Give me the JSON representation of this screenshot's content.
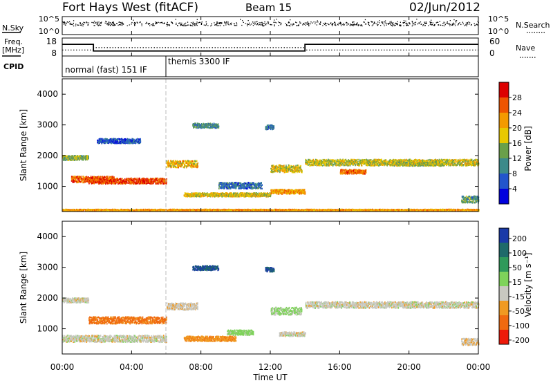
{
  "header": {
    "radar_title": "Fort Hays West (fitACF)",
    "beam": "Beam 15",
    "date": "02/Jun/2012"
  },
  "sidebar_labels": {
    "nsky": "N.Sky",
    "freq_line1": "Freq.",
    "freq_line2": "[MHz]",
    "cpid": "CPID",
    "nsearch": "N.Search",
    "nave": "Nave"
  },
  "noise_panel": {
    "y_ticks_left": [
      "10^5",
      "10^0"
    ],
    "y_ticks_right": [
      "10^5",
      "10^0"
    ]
  },
  "freq_panel": {
    "y_ticks_left": [
      "18",
      "8"
    ],
    "y_ticks_right": [
      "60",
      "0"
    ],
    "freq_steps": [
      {
        "start_hour": 0.0,
        "end_hour": 1.8,
        "mhz": 14.5
      },
      {
        "start_hour": 1.8,
        "end_hour": 14.0,
        "mhz": 10.8
      },
      {
        "start_hour": 14.0,
        "end_hour": 24.0,
        "mhz": 14.5
      }
    ],
    "nave_steps": [
      {
        "start_hour": 0.0,
        "end_hour": 1.8,
        "value": 20
      },
      {
        "start_hour": 1.8,
        "end_hour": 14.0,
        "value": 28
      },
      {
        "start_hour": 14.0,
        "end_hour": 24.0,
        "value": 20
      }
    ]
  },
  "cpid_panel": {
    "segments": [
      {
        "start_hour": 0.0,
        "label": "normal (fast) 151 IF"
      },
      {
        "start_hour": 6.0,
        "label": "themis 3300 IF"
      }
    ]
  },
  "x_axis": {
    "title": "Time UT",
    "ticks": [
      "00:00",
      "04:00",
      "08:00",
      "12:00",
      "16:00",
      "20:00",
      "00:00"
    ],
    "tick_hours": [
      0,
      4,
      8,
      12,
      16,
      20,
      24
    ]
  },
  "chart_data": [
    {
      "type": "heatmap",
      "name": "power",
      "ylabel": "Slant Range [km]",
      "yticks": [
        1000,
        2000,
        3000,
        4000
      ],
      "ylim": [
        180,
        4500
      ],
      "xlim_hours": [
        0,
        24
      ],
      "colorbar": {
        "label": "Power [dB]",
        "ticks": [
          4,
          8,
          12,
          16,
          20,
          24,
          28
        ],
        "range": [
          0,
          32
        ],
        "colors": [
          "#0000dd",
          "#2255cc",
          "#3c8a8a",
          "#6aa04a",
          "#e8c800",
          "#f49a00",
          "#ee5500",
          "#dd0000"
        ]
      },
      "scatter_bands": [
        {
          "start_hour": 0.0,
          "end_hour": 1.5,
          "center_km": 1950,
          "width_km": 150,
          "power": 14
        },
        {
          "start_hour": 0.5,
          "end_hour": 3.0,
          "center_km": 1250,
          "width_km": 200,
          "power": 26
        },
        {
          "start_hour": 1.5,
          "end_hour": 6.0,
          "center_km": 1200,
          "width_km": 180,
          "power": 27
        },
        {
          "start_hour": 6.0,
          "end_hour": 7.8,
          "center_km": 1750,
          "width_km": 220,
          "power": 20
        },
        {
          "start_hour": 2.0,
          "end_hour": 4.5,
          "center_km": 2500,
          "width_km": 150,
          "power": 6
        },
        {
          "start_hour": 7.5,
          "end_hour": 9.0,
          "center_km": 3000,
          "width_km": 150,
          "power": 11
        },
        {
          "start_hour": 7.0,
          "end_hour": 12.0,
          "center_km": 750,
          "width_km": 120,
          "power": 18
        },
        {
          "start_hour": 9.0,
          "end_hour": 11.5,
          "center_km": 1050,
          "width_km": 200,
          "power": 8
        },
        {
          "start_hour": 11.7,
          "end_hour": 12.2,
          "center_km": 2950,
          "width_km": 140,
          "power": 8
        },
        {
          "start_hour": 12.0,
          "end_hour": 13.8,
          "center_km": 1600,
          "width_km": 240,
          "power": 18
        },
        {
          "start_hour": 12.0,
          "end_hour": 14.0,
          "center_km": 850,
          "width_km": 140,
          "power": 22
        },
        {
          "start_hour": 14.0,
          "end_hour": 24.0,
          "center_km": 1800,
          "width_km": 200,
          "power": 17
        },
        {
          "start_hour": 16.0,
          "end_hour": 17.5,
          "center_km": 1500,
          "width_km": 140,
          "power": 25
        },
        {
          "start_hour": 19.0,
          "end_hour": 22.0,
          "center_km": 1750,
          "width_km": 120,
          "power": 16
        },
        {
          "start_hour": 23.0,
          "end_hour": 24.0,
          "center_km": 600,
          "width_km": 220,
          "power": 12
        },
        {
          "start_hour": 0.0,
          "end_hour": 24.0,
          "center_km": 240,
          "width_km": 70,
          "power": 22
        }
      ]
    },
    {
      "type": "heatmap",
      "name": "velocity",
      "ylabel": "Slant Range [km]",
      "yticks": [
        1000,
        2000,
        3000,
        4000
      ],
      "ylim": [
        180,
        4500
      ],
      "xlim_hours": [
        0,
        24
      ],
      "colorbar": {
        "label": "Velocity [m s⁻¹]",
        "ticks": [
          "200",
          "100",
          "50",
          "15",
          "-15",
          "-50",
          "-100",
          "-200"
        ],
        "colors": [
          "#1a3aa8",
          "#1e6a6a",
          "#2f9a5a",
          "#7ed35a",
          "#c8c8c0",
          "#f09a22",
          "#f06a10",
          "#ee1a0a"
        ]
      },
      "scatter_bands": [
        {
          "start_hour": 0.0,
          "end_hour": 1.5,
          "center_km": 1950,
          "width_km": 150,
          "velocity": 0
        },
        {
          "start_hour": 1.5,
          "end_hour": 6.0,
          "center_km": 1300,
          "width_km": 220,
          "velocity": -60
        },
        {
          "start_hour": 6.0,
          "end_hour": 7.8,
          "center_km": 1750,
          "width_km": 220,
          "velocity": -5
        },
        {
          "start_hour": 0.0,
          "end_hour": 6.0,
          "center_km": 700,
          "width_km": 220,
          "velocity": 0
        },
        {
          "start_hour": 7.5,
          "end_hour": 9.0,
          "center_km": 3000,
          "width_km": 150,
          "velocity": 200
        },
        {
          "start_hour": 7.0,
          "end_hour": 10.0,
          "center_km": 700,
          "width_km": 160,
          "velocity": -40
        },
        {
          "start_hour": 9.5,
          "end_hour": 11.0,
          "center_km": 900,
          "width_km": 160,
          "velocity": 30
        },
        {
          "start_hour": 11.7,
          "end_hour": 12.2,
          "center_km": 2950,
          "width_km": 140,
          "velocity": 200
        },
        {
          "start_hour": 12.0,
          "end_hour": 13.8,
          "center_km": 1600,
          "width_km": 240,
          "velocity": 20
        },
        {
          "start_hour": 12.5,
          "end_hour": 14.0,
          "center_km": 850,
          "width_km": 140,
          "velocity": 0
        },
        {
          "start_hour": 14.0,
          "end_hour": 24.0,
          "center_km": 1800,
          "width_km": 200,
          "velocity": 0
        },
        {
          "start_hour": 23.0,
          "end_hour": 24.0,
          "center_km": 600,
          "width_km": 220,
          "velocity": -5
        }
      ]
    }
  ]
}
